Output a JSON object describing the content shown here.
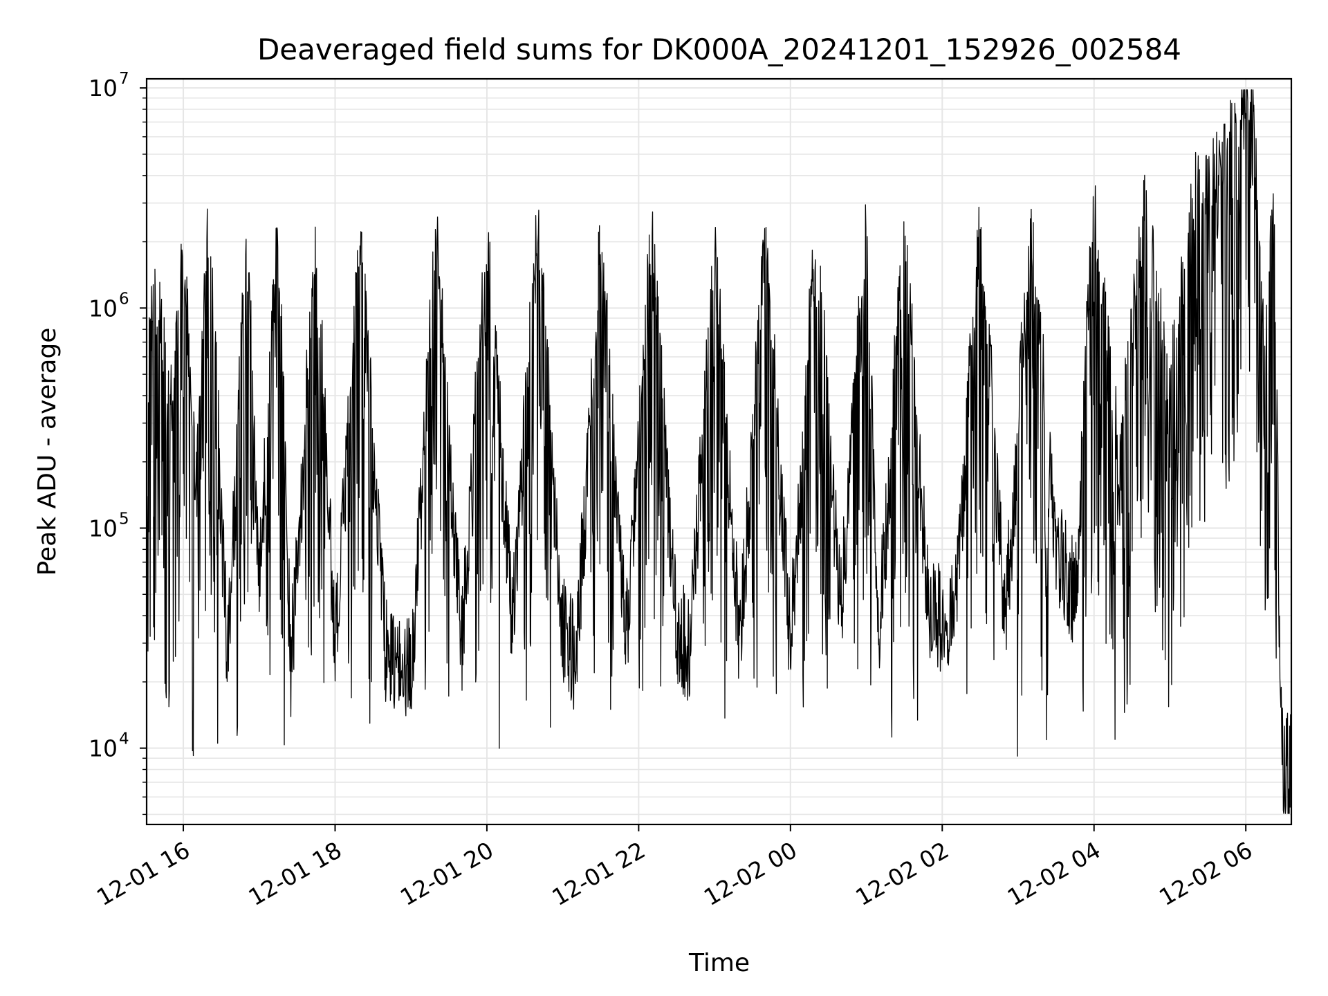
{
  "chart_data": {
    "type": "line",
    "title": "Deaveraged field sums for DK000A_20241201_152926_002584",
    "xlabel": "Time",
    "ylabel": "Peak ADU - average",
    "y_scale": "log",
    "ylim": [
      4500,
      11000000
    ],
    "xlim": [
      "2024-12-01 15:31",
      "2024-12-02 06:36"
    ],
    "grid": true,
    "line_color": "#000000",
    "grid_color": "#e6e6e6",
    "x_ticks": [
      {
        "t": "2024-12-01 16:00",
        "label": "12-01 16"
      },
      {
        "t": "2024-12-01 18:00",
        "label": "12-01 18"
      },
      {
        "t": "2024-12-01 20:00",
        "label": "12-01 20"
      },
      {
        "t": "2024-12-01 22:00",
        "label": "12-01 22"
      },
      {
        "t": "2024-12-02 00:00",
        "label": "12-02 00"
      },
      {
        "t": "2024-12-02 02:00",
        "label": "12-02 02"
      },
      {
        "t": "2024-12-02 04:00",
        "label": "12-02 04"
      },
      {
        "t": "2024-12-02 06:00",
        "label": "12-02 06"
      }
    ],
    "y_ticks": [
      {
        "value": 10000,
        "base": "10",
        "exp": "4"
      },
      {
        "value": 100000,
        "base": "10",
        "exp": "5"
      },
      {
        "value": 1000000,
        "base": "10",
        "exp": "6"
      },
      {
        "value": 10000000,
        "base": "10",
        "exp": "7"
      }
    ],
    "series": [
      {
        "points": [
          [
            "2024-12-01 15:31",
            450000
          ],
          [
            "2024-12-01 15:40",
            800000
          ],
          [
            "2024-12-01 15:50",
            250000
          ],
          [
            "2024-12-01 16:00",
            1200000
          ],
          [
            "2024-12-01 16:10",
            130000
          ],
          [
            "2024-12-01 16:20",
            1800000
          ],
          [
            "2024-12-01 16:35",
            27000
          ],
          [
            "2024-12-01 16:50",
            1500000
          ],
          [
            "2024-12-01 17:00",
            60000
          ],
          [
            "2024-12-01 17:15",
            1600000
          ],
          [
            "2024-12-01 17:25",
            24000
          ],
          [
            "2024-12-01 17:45",
            1300000
          ],
          [
            "2024-12-01 18:00",
            30000
          ],
          [
            "2024-12-01 18:20",
            1400000
          ],
          [
            "2024-12-01 18:40",
            28000
          ],
          [
            "2024-12-01 19:00",
            23000
          ],
          [
            "2024-12-01 19:20",
            1500000
          ],
          [
            "2024-12-01 19:40",
            30000
          ],
          [
            "2024-12-01 20:00",
            1400000
          ],
          [
            "2024-12-01 20:20",
            40000
          ],
          [
            "2024-12-01 20:40",
            1600000
          ],
          [
            "2024-12-01 21:00",
            35000
          ],
          [
            "2024-12-01 21:10",
            25000
          ],
          [
            "2024-12-01 21:30",
            1400000
          ],
          [
            "2024-12-01 21:50",
            30000
          ],
          [
            "2024-12-01 22:10",
            1500000
          ],
          [
            "2024-12-01 22:30",
            35000
          ],
          [
            "2024-12-01 22:40",
            28000
          ],
          [
            "2024-12-01 23:00",
            1400000
          ],
          [
            "2024-12-01 23:20",
            30000
          ],
          [
            "2024-12-01 23:40",
            1500000
          ],
          [
            "2024-12-02 00:00",
            31000
          ],
          [
            "2024-12-02 00:20",
            1500000
          ],
          [
            "2024-12-02 00:40",
            45000
          ],
          [
            "2024-12-02 01:00",
            1600000
          ],
          [
            "2024-12-02 01:10",
            35000
          ],
          [
            "2024-12-02 01:30",
            1500000
          ],
          [
            "2024-12-02 01:50",
            40000
          ],
          [
            "2024-12-02 02:10",
            38000
          ],
          [
            "2024-12-02 02:30",
            1600000
          ],
          [
            "2024-12-02 02:50",
            40000
          ],
          [
            "2024-12-02 03:10",
            1500000
          ],
          [
            "2024-12-02 03:30",
            80000
          ],
          [
            "2024-12-02 03:45",
            50000
          ],
          [
            "2024-12-02 04:00",
            2000000
          ],
          [
            "2024-12-02 04:20",
            150000
          ],
          [
            "2024-12-02 04:40",
            2000000
          ],
          [
            "2024-12-02 05:00",
            300000
          ],
          [
            "2024-12-02 05:20",
            2500000
          ],
          [
            "2024-12-02 05:40",
            3000000
          ],
          [
            "2024-12-02 06:05",
            7500000
          ],
          [
            "2024-12-02 06:15",
            400000
          ],
          [
            "2024-12-02 06:22",
            2800000
          ],
          [
            "2024-12-02 06:28",
            10000
          ],
          [
            "2024-12-02 06:30",
            6000
          ],
          [
            "2024-12-02 06:33",
            8000
          ],
          [
            "2024-12-02 06:36",
            7500
          ]
        ]
      }
    ]
  }
}
